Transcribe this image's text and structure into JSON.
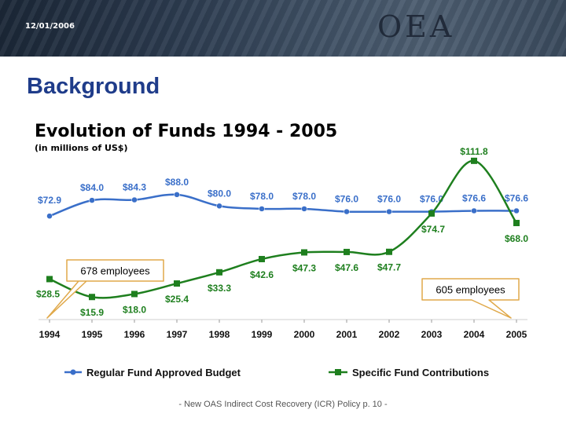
{
  "header": {
    "date": "12/01/2006",
    "logo": "OEA"
  },
  "page": {
    "title": "Background"
  },
  "footer": {
    "text": "- New OAS Indirect Cost Recovery (ICR) Policy p. 10 -"
  },
  "colors": {
    "regular": "#3a6fc9",
    "specific": "#1e7f1e",
    "title": "#1f3c8a"
  },
  "chart_data": {
    "type": "line",
    "title": "Evolution of Funds 1994 - 2005",
    "subtitle": "(in millions of US$)",
    "categories": [
      "1994",
      "1995",
      "1996",
      "1997",
      "1998",
      "1999",
      "2000",
      "2001",
      "2002",
      "2003",
      "2004",
      "2005"
    ],
    "series": [
      {
        "name": "Regular Fund Approved Budget",
        "values": [
          72.9,
          84.0,
          84.3,
          88.0,
          80.0,
          78.0,
          78.0,
          76.0,
          76.0,
          76.0,
          76.6,
          76.6
        ],
        "labels": [
          "$72.9",
          "$84.0",
          "$84.3",
          "$88.0",
          "$80.0",
          "$78.0",
          "$78.0",
          "$76.0",
          "$76.0",
          "$76.0",
          "$76.6",
          "$76.6"
        ]
      },
      {
        "name": "Specific Fund Contributions",
        "values": [
          28.5,
          15.9,
          18.0,
          25.4,
          33.3,
          42.6,
          47.3,
          47.6,
          47.7,
          74.7,
          111.8,
          68.0
        ],
        "labels": [
          "$28.5",
          "$15.9",
          "$18.0",
          "$25.4",
          "$33.3",
          "$42.6",
          "$47.3",
          "$47.6",
          "$47.7",
          "$74.7",
          "$111.8",
          "$68.0"
        ]
      }
    ],
    "ylim": [
      0,
      120
    ],
    "annotations": [
      {
        "text": "678 employees",
        "year": "1994"
      },
      {
        "text": "605 employees",
        "year": "2005"
      }
    ],
    "legend_position": "bottom"
  }
}
